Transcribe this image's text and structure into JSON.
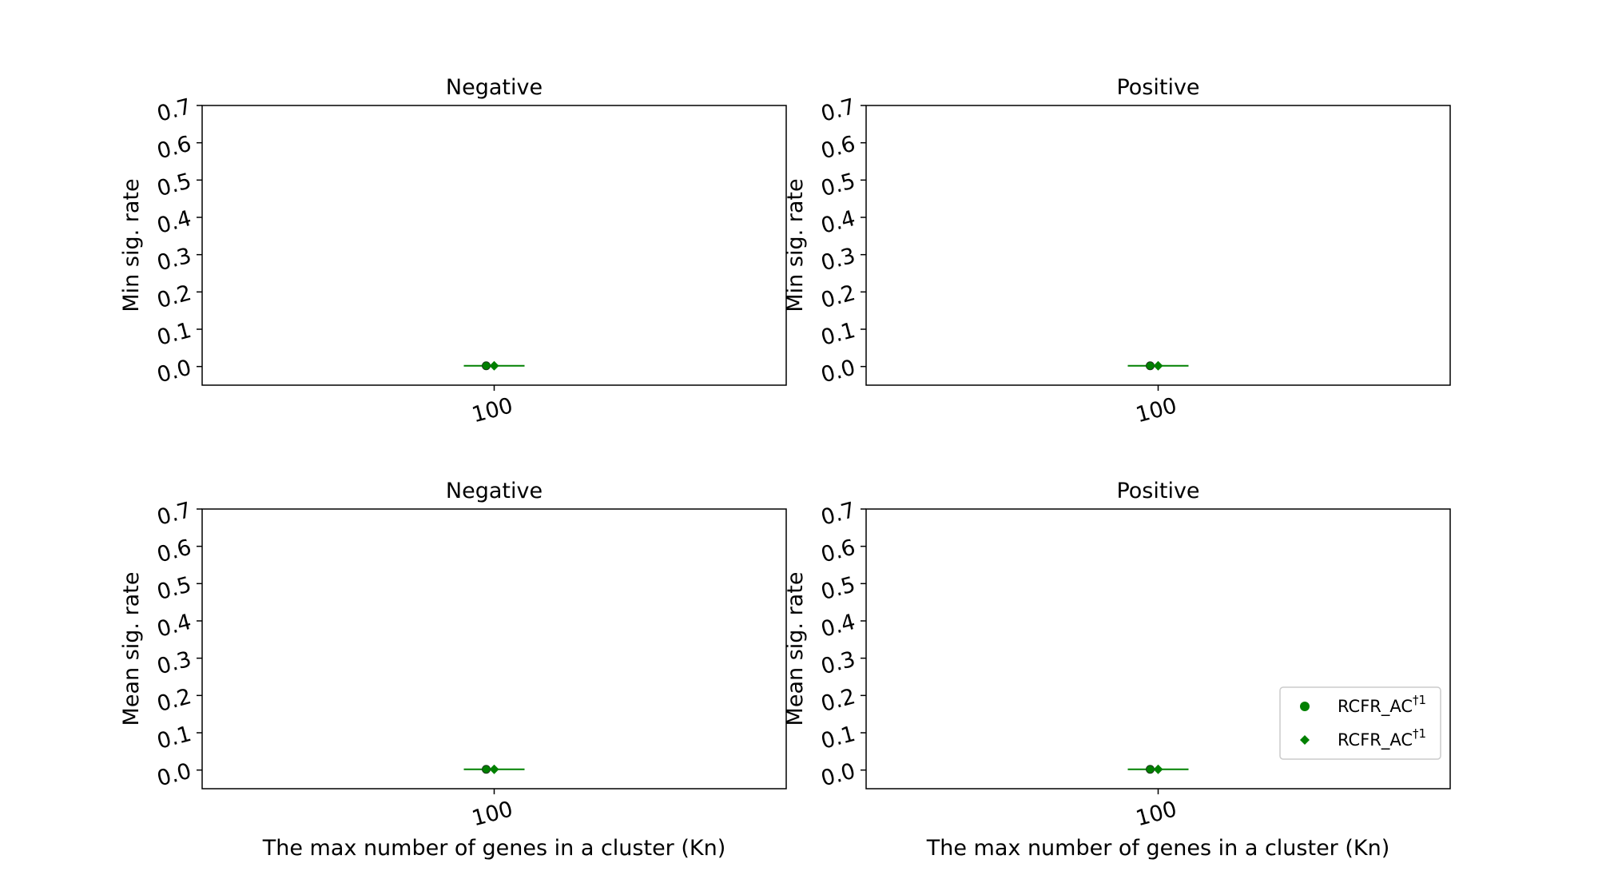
{
  "chart_data": [
    {
      "type": "scatter",
      "title": "Negative",
      "ylabel": "Min sig. rate",
      "xlabel": "",
      "categories": [
        "100"
      ],
      "ylim": [
        -0.05,
        0.7
      ],
      "yticks": [
        "0.0",
        "0.1",
        "0.2",
        "0.3",
        "0.4",
        "0.5",
        "0.6",
        "0.7"
      ],
      "grid": false,
      "series": [
        {
          "marker": "circle",
          "color": "#008000",
          "values": [
            0.002
          ]
        },
        {
          "marker": "diamond",
          "color": "#008000",
          "values": [
            0.002
          ]
        }
      ],
      "errorbar": {
        "color": "#008000",
        "values": [
          0.002
        ]
      }
    },
    {
      "type": "scatter",
      "title": "Positive",
      "ylabel": "Min sig. rate",
      "xlabel": "",
      "categories": [
        "100"
      ],
      "ylim": [
        -0.05,
        0.7
      ],
      "yticks": [
        "0.0",
        "0.1",
        "0.2",
        "0.3",
        "0.4",
        "0.5",
        "0.6",
        "0.7"
      ],
      "grid": false,
      "series": [
        {
          "marker": "circle",
          "color": "#008000",
          "values": [
            0.002
          ]
        },
        {
          "marker": "diamond",
          "color": "#008000",
          "values": [
            0.002
          ]
        }
      ],
      "errorbar": {
        "color": "#008000",
        "values": [
          0.002
        ]
      }
    },
    {
      "type": "scatter",
      "title": "Negative",
      "ylabel": "Mean sig. rate",
      "xlabel": "The max number of genes in a cluster (Kn)",
      "categories": [
        "100"
      ],
      "ylim": [
        -0.05,
        0.7
      ],
      "yticks": [
        "0.0",
        "0.1",
        "0.2",
        "0.3",
        "0.4",
        "0.5",
        "0.6",
        "0.7"
      ],
      "grid": false,
      "series": [
        {
          "marker": "circle",
          "color": "#008000",
          "values": [
            0.002
          ]
        },
        {
          "marker": "diamond",
          "color": "#008000",
          "values": [
            0.002
          ]
        }
      ],
      "errorbar": {
        "color": "#008000",
        "values": [
          0.002
        ]
      }
    },
    {
      "type": "scatter",
      "title": "Positive",
      "ylabel": "Mean sig. rate",
      "xlabel": "The max number of genes in a cluster (Kn)",
      "categories": [
        "100"
      ],
      "ylim": [
        -0.05,
        0.7
      ],
      "yticks": [
        "0.0",
        "0.1",
        "0.2",
        "0.3",
        "0.4",
        "0.5",
        "0.6",
        "0.7"
      ],
      "grid": false,
      "series": [
        {
          "marker": "circle",
          "color": "#008000",
          "values": [
            0.002
          ]
        },
        {
          "marker": "diamond",
          "color": "#008000",
          "values": [
            0.002
          ]
        }
      ],
      "errorbar": {
        "color": "#008000",
        "values": [
          0.002
        ]
      },
      "legend": {
        "placement": "lower-right",
        "entries": [
          {
            "marker": "circle",
            "color": "#008000",
            "label": "RCFR_AC",
            "sup": "†1"
          },
          {
            "marker": "diamond",
            "color": "#008000",
            "label": "RCFR_AC",
            "sup": "†1"
          }
        ]
      }
    }
  ]
}
